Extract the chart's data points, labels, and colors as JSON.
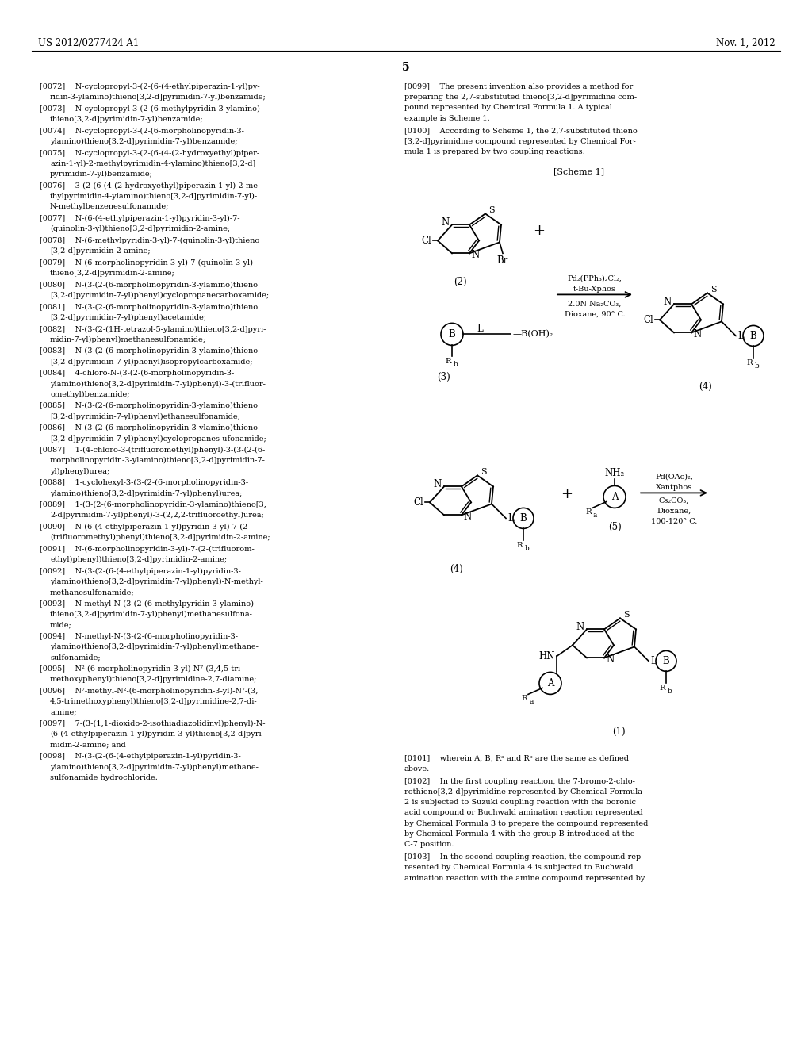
{
  "background_color": "#ffffff",
  "page_header_left": "US 2012/0277424 A1",
  "page_header_right": "Nov. 1, 2012",
  "page_number": "5"
}
